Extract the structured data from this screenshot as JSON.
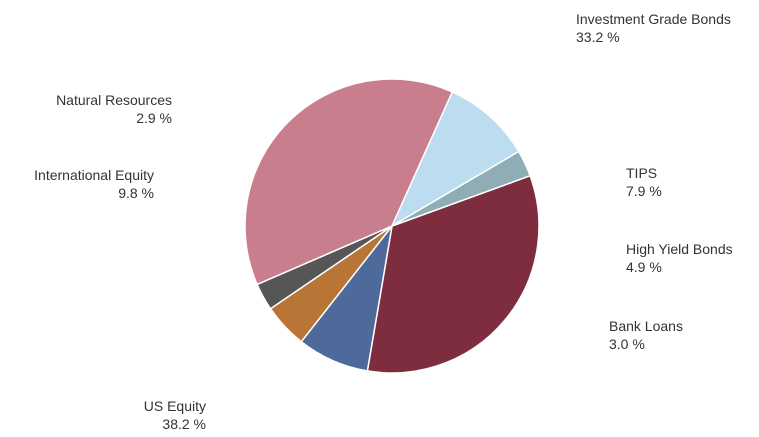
{
  "chart_data": {
    "type": "pie",
    "title": "",
    "slices": [
      {
        "name": "Investment Grade Bonds",
        "value": 33.2,
        "label": "33.2 %",
        "color": "#7e2d3f"
      },
      {
        "name": "TIPS",
        "value": 7.9,
        "label": "7.9 %",
        "color": "#4d6a9a"
      },
      {
        "name": "High Yield Bonds",
        "value": 4.9,
        "label": "4.9 %",
        "color": "#b87536"
      },
      {
        "name": "Bank Loans",
        "value": 3.0,
        "label": "3.0 %",
        "color": "#565656"
      },
      {
        "name": "US Equity",
        "value": 38.2,
        "label": "38.2 %",
        "color": "#c87e8d"
      },
      {
        "name": "International Equity",
        "value": 9.8,
        "label": "9.8 %",
        "color": "#bcdcf0"
      },
      {
        "name": "Natural Resources",
        "value": 2.9,
        "label": "2.9 %",
        "color": "#8fadb5"
      }
    ],
    "start_angle_deg": 20,
    "direction": "clockwise"
  }
}
